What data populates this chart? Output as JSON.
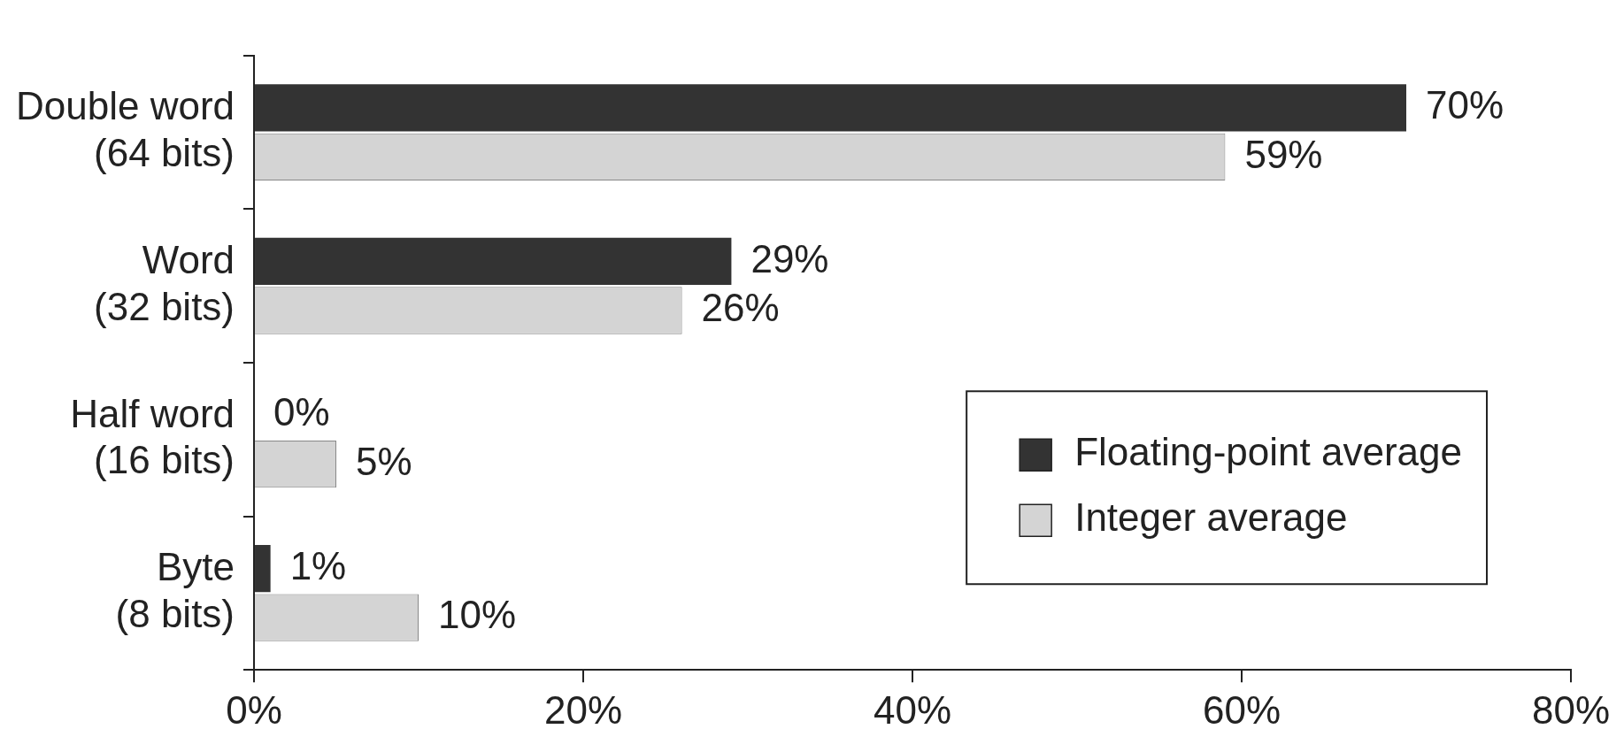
{
  "chart_data": {
    "type": "bar",
    "orientation": "horizontal",
    "categories": [
      "Double word (64 bits)",
      "Word (32 bits)",
      "Half word (16 bits)",
      "Byte (8 bits)"
    ],
    "series": [
      {
        "name": "Floating-point average",
        "color": "#333333",
        "values": [
          70,
          29,
          0,
          1
        ],
        "value_labels": [
          "70%",
          "29%",
          "0%",
          "1%"
        ]
      },
      {
        "name": "Integer average",
        "color": "#d4d4d4",
        "values": [
          59,
          26,
          5,
          10
        ],
        "value_labels": [
          "59%",
          "26%",
          "5%",
          "10%"
        ]
      }
    ],
    "xlim": [
      0,
      80
    ],
    "xticks": [
      {
        "value": 0,
        "label": "0%"
      },
      {
        "value": 20,
        "label": "20%"
      },
      {
        "value": 40,
        "label": "40%"
      },
      {
        "value": 60,
        "label": "60%"
      },
      {
        "value": 80,
        "label": "80%"
      }
    ],
    "grid": false,
    "legend": "bottom right"
  }
}
